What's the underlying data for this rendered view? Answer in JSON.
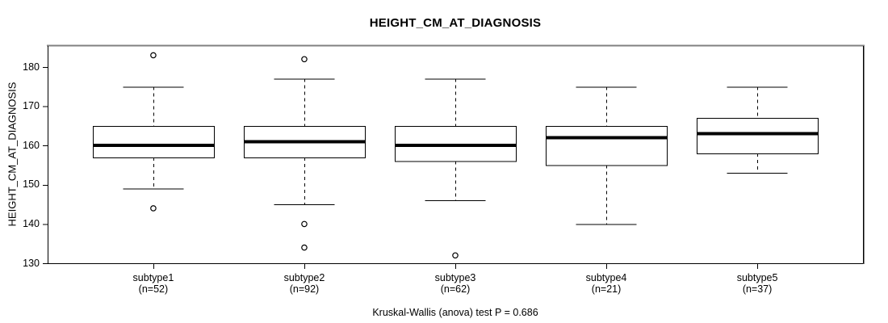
{
  "chart_data": {
    "type": "boxplot",
    "title": "HEIGHT_CM_AT_DIAGNOSIS",
    "ylabel": "HEIGHT_CM_AT_DIAGNOSIS",
    "footer": "Kruskal-Wallis (anova) test P = 0.686",
    "ylim": [
      130,
      185
    ],
    "yticks": [
      130,
      140,
      150,
      160,
      170,
      180
    ],
    "grid": false,
    "legend": "none",
    "colors": {
      "line": "#000000",
      "panel_top_border": "#808080",
      "panel_right_shadow": "#808080",
      "background": "#ffffff",
      "box_fill": "#ffffff"
    },
    "groups": [
      {
        "label": "subtype1",
        "n_label": "(n=52)",
        "n": 52,
        "whisker_low": 149,
        "q1": 157,
        "median": 160,
        "q3": 165,
        "whisker_high": 175,
        "outliers": [
          183,
          144
        ]
      },
      {
        "label": "subtype2",
        "n_label": "(n=92)",
        "n": 92,
        "whisker_low": 145,
        "q1": 157,
        "median": 161,
        "q3": 165,
        "whisker_high": 177,
        "outliers": [
          182,
          140,
          134
        ]
      },
      {
        "label": "subtype3",
        "n_label": "(n=62)",
        "n": 62,
        "whisker_low": 146,
        "q1": 156,
        "median": 160,
        "q3": 165,
        "whisker_high": 177,
        "outliers": [
          132
        ]
      },
      {
        "label": "subtype4",
        "n_label": "(n=21)",
        "n": 21,
        "whisker_low": 140,
        "q1": 155,
        "median": 162,
        "q3": 165,
        "whisker_high": 175,
        "outliers": []
      },
      {
        "label": "subtype5",
        "n_label": "(n=37)",
        "n": 37,
        "whisker_low": 153,
        "q1": 158,
        "median": 163,
        "q3": 167,
        "whisker_high": 175,
        "outliers": []
      }
    ]
  }
}
